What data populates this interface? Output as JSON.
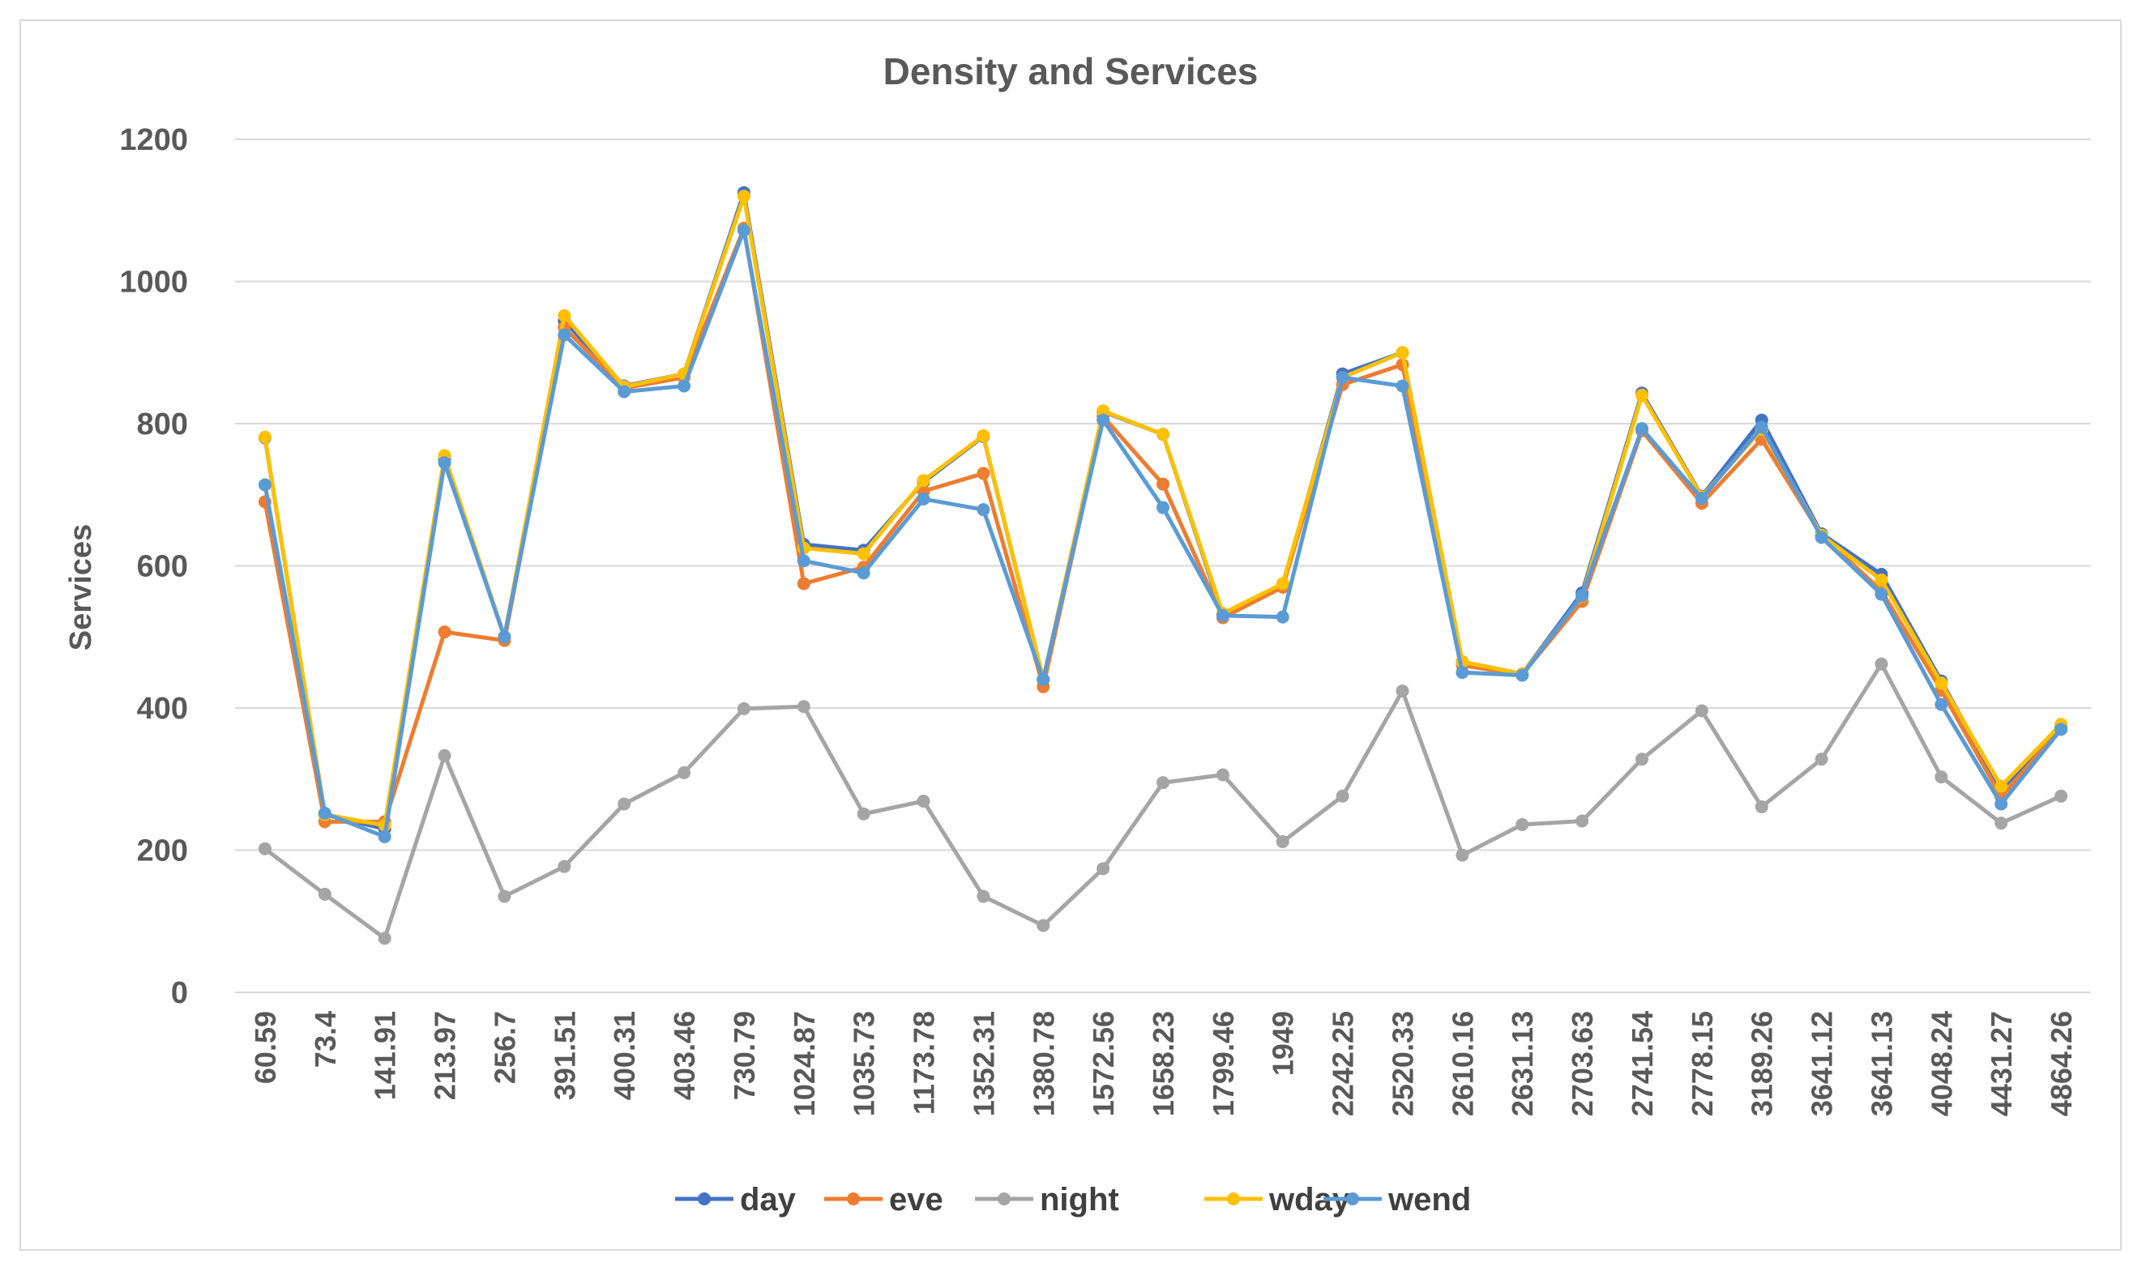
{
  "chart_data": {
    "type": "line",
    "title": "Density and Services",
    "xlabel": "",
    "ylabel": "Services",
    "ylim": [
      0,
      1200
    ],
    "yticks": [
      "0",
      "200",
      "400",
      "600",
      "800",
      "1000",
      "1200"
    ],
    "grid": true,
    "legend_position": "bottom",
    "categories": [
      "60.59",
      "73.4",
      "141.91",
      "213.97",
      "256.7",
      "391.51",
      "400.31",
      "403.46",
      "730.79",
      "1024.87",
      "1035.73",
      "1173.78",
      "1352.31",
      "1380.78",
      "1572.56",
      "1658.23",
      "1799.46",
      "1949",
      "2242.25",
      "2520.33",
      "2610.16",
      "2631.13",
      "2703.63",
      "2741.54",
      "2778.15",
      "3189.26",
      "3641.12",
      "3641.13",
      "4048.24",
      "4431.27",
      "4864.26"
    ],
    "series": [
      {
        "name": "day",
        "color": "#4472c4",
        "values": [
          780,
          250,
          230,
          750,
          500,
          945,
          853,
          870,
          1125,
          630,
          622,
          718,
          782,
          440,
          817,
          785,
          530,
          572,
          870,
          900,
          465,
          448,
          562,
          843,
          698,
          805,
          645,
          588,
          438,
          285,
          375
        ]
      },
      {
        "name": "eve",
        "color": "#ed7d31",
        "values": [
          690,
          240,
          240,
          507,
          495,
          935,
          850,
          865,
          1075,
          575,
          598,
          705,
          730,
          430,
          810,
          715,
          527,
          570,
          855,
          883,
          460,
          447,
          550,
          790,
          688,
          778,
          643,
          565,
          425,
          275,
          372
        ]
      },
      {
        "name": "night",
        "color": "#a5a5a5",
        "values": [
          202,
          138,
          76,
          333,
          135,
          177,
          265,
          309,
          399,
          402,
          251,
          269,
          135,
          94,
          174,
          295,
          306,
          212,
          276,
          424,
          193,
          236,
          241,
          328,
          396,
          261,
          328,
          462,
          303,
          238,
          276
        ]
      },
      {
        "name": "wday",
        "color": "#ffc000",
        "values": [
          781,
          250,
          235,
          755,
          500,
          952,
          852,
          870,
          1120,
          625,
          617,
          720,
          783,
          440,
          818,
          785,
          533,
          575,
          865,
          900,
          465,
          448,
          557,
          840,
          697,
          792,
          643,
          580,
          435,
          290,
          377
        ]
      },
      {
        "name": "wend",
        "color": "#5b9bd5",
        "values": [
          714,
          252,
          219,
          745,
          500,
          925,
          845,
          853,
          1072,
          607,
          590,
          694,
          679,
          440,
          805,
          682,
          530,
          528,
          865,
          853,
          450,
          446,
          558,
          793,
          695,
          795,
          640,
          560,
          405,
          265,
          370
        ]
      }
    ]
  }
}
